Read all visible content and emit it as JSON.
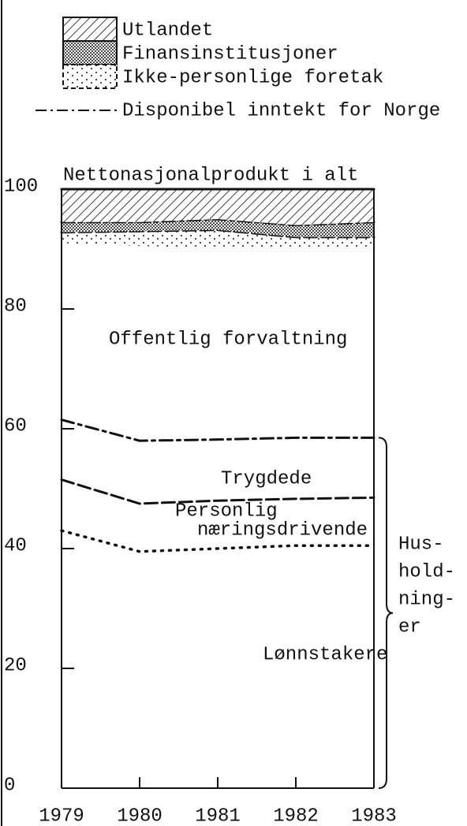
{
  "chart_data": {
    "type": "stacked-area",
    "title": "Nettonasjonalprodukt i alt",
    "x": [
      1979,
      1980,
      1981,
      1982,
      1983
    ],
    "xlim": [
      1979,
      1983
    ],
    "xticks": [
      1979,
      1980,
      1981,
      1982,
      1983
    ],
    "ylim": [
      0,
      100
    ],
    "yticks": [
      0,
      20,
      40,
      60,
      80,
      100
    ],
    "series": [
      {
        "label": [
          "Lønnstakere"
        ],
        "fill": "none",
        "top": "dotted",
        "values": [
          43,
          39.5,
          40,
          40.5,
          40.5
        ]
      },
      {
        "label": [
          "Personlig",
          "næringsdrivende"
        ],
        "fill": "none",
        "top": "dashed",
        "values": [
          8.5,
          8,
          8,
          7.8,
          8
        ]
      },
      {
        "label": [
          "Trygdede"
        ],
        "fill": "none",
        "top": "dash-dot",
        "values": [
          10,
          10.5,
          10.2,
          10.2,
          10
        ]
      },
      {
        "label": [
          "Offentlig forvaltning"
        ],
        "fill": "none",
        "top": "none",
        "values": [
          29.5,
          32.5,
          32,
          31.5,
          31.5
        ]
      },
      {
        "name": "Ikke-personlige foretak",
        "fill": "sparse-dots",
        "top": "dashed",
        "values": [
          1.8,
          2.5,
          3,
          2,
          2
        ]
      },
      {
        "name": "Finansinstitusjoner",
        "fill": "dense-dots",
        "top": "dash-dot",
        "values": [
          1.7,
          1.5,
          1.8,
          2,
          2.5
        ]
      },
      {
        "name": "Utlandet",
        "fill": "hatch",
        "top": "solid",
        "values": [
          5.5,
          5.5,
          5,
          6,
          5.5
        ]
      }
    ],
    "legend_line": "Disponibel inntekt for Norge",
    "brace_label": [
      "Hus-",
      "hold-",
      "ning-",
      "er"
    ]
  }
}
